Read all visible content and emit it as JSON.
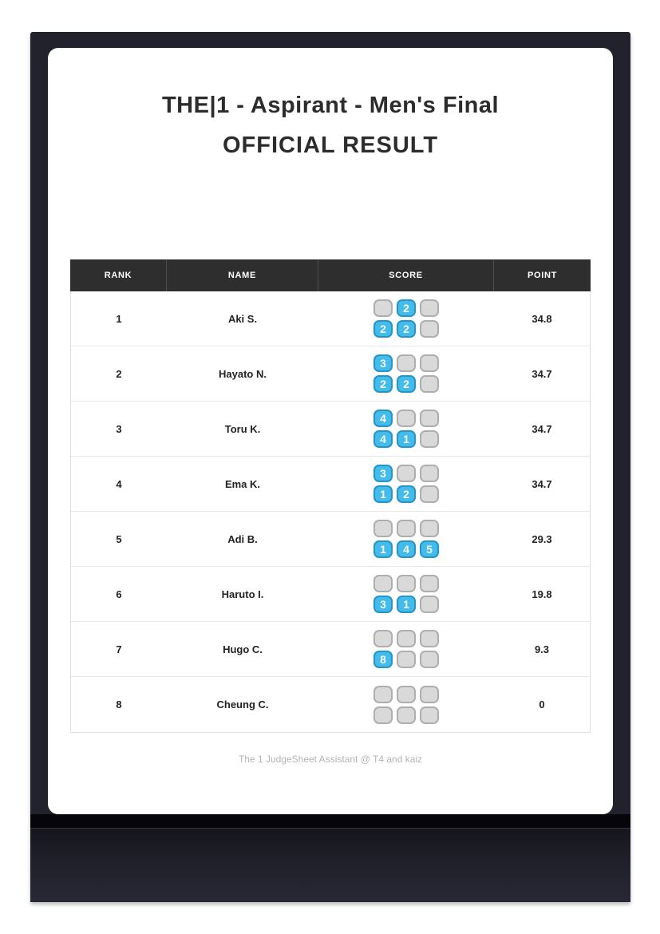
{
  "page": {
    "title": "THE|1 - Aspirant - Men's Final",
    "subtitle": "OFFICIAL RESULT",
    "footer": "The 1 JudgeSheet Assistant @ T4 and kaiz"
  },
  "colors": {
    "bezel": "#21222b",
    "chin": "#06060a",
    "header_bg": "#2e2e2e",
    "header_text": "#ffffff",
    "score_filled_fill": "#44bbe8",
    "score_filled_border": "#2396c9",
    "score_empty_fill": "#d9d9d9",
    "score_empty_border": "#aeaeae",
    "row_divider": "#e8e8e8",
    "footer_text": "#b3b3b3"
  },
  "table": {
    "headers": [
      "RANK",
      "NAME",
      "SCORE",
      "POINT"
    ],
    "rows": [
      {
        "rank": "1",
        "name": "Aki S.",
        "score_grid": [
          [
            "",
            "2",
            ""
          ],
          [
            "2",
            "2",
            ""
          ]
        ],
        "point": "34.8"
      },
      {
        "rank": "2",
        "name": "Hayato N.",
        "score_grid": [
          [
            "3",
            "",
            ""
          ],
          [
            "2",
            "2",
            ""
          ]
        ],
        "point": "34.7"
      },
      {
        "rank": "3",
        "name": "Toru K.",
        "score_grid": [
          [
            "4",
            "",
            ""
          ],
          [
            "4",
            "1",
            ""
          ]
        ],
        "point": "34.7"
      },
      {
        "rank": "4",
        "name": "Ema K.",
        "score_grid": [
          [
            "3",
            "",
            ""
          ],
          [
            "1",
            "2",
            ""
          ]
        ],
        "point": "34.7"
      },
      {
        "rank": "5",
        "name": "Adi B.",
        "score_grid": [
          [
            "",
            "",
            ""
          ],
          [
            "1",
            "4",
            "5"
          ]
        ],
        "point": "29.3"
      },
      {
        "rank": "6",
        "name": "Haruto I.",
        "score_grid": [
          [
            "",
            "",
            ""
          ],
          [
            "3",
            "1",
            ""
          ]
        ],
        "point": "19.8"
      },
      {
        "rank": "7",
        "name": "Hugo C.",
        "score_grid": [
          [
            "",
            "",
            ""
          ],
          [
            "8",
            "",
            ""
          ]
        ],
        "point": "9.3"
      },
      {
        "rank": "8",
        "name": "Cheung C.",
        "score_grid": [
          [
            "",
            "",
            ""
          ],
          [
            "",
            "",
            ""
          ]
        ],
        "point": "0"
      }
    ]
  }
}
